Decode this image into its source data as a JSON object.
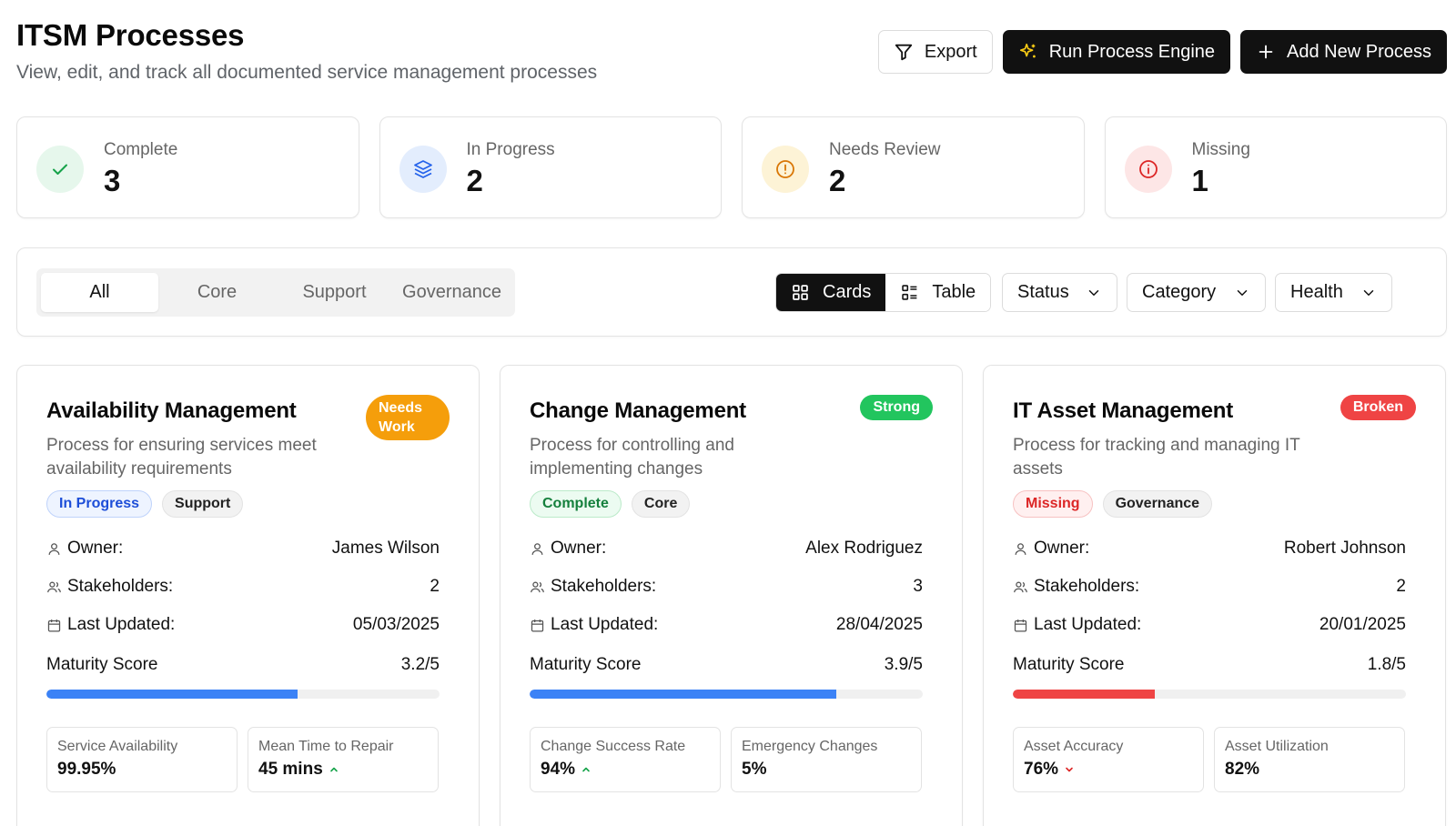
{
  "header": {
    "title": "ITSM Processes",
    "subtitle": "View, edit, and track all documented service management processes",
    "export_label": "Export",
    "run_engine_label": "Run Process Engine",
    "add_process_label": "Add New Process"
  },
  "stats": [
    {
      "label": "Complete",
      "value": "3",
      "icon": "check-icon",
      "color": "#16a34a",
      "bg": "#e6f7ec"
    },
    {
      "label": "In Progress",
      "value": "2",
      "icon": "layers-icon",
      "color": "#2563eb",
      "bg": "#e3edfd"
    },
    {
      "label": "Needs Review",
      "value": "2",
      "icon": "alert-circle-icon",
      "color": "#d97706",
      "bg": "#fdf3d6"
    },
    {
      "label": "Missing",
      "value": "1",
      "icon": "info-circle-icon",
      "color": "#dc2626",
      "bg": "#fde6e6"
    }
  ],
  "filters": {
    "tabs": [
      "All",
      "Core",
      "Support",
      "Governance"
    ],
    "active_tab": "All",
    "view_cards_label": "Cards",
    "view_table_label": "Table",
    "status_label": "Status",
    "category_label": "Category",
    "health_label": "Health"
  },
  "processes": [
    {
      "title": "Availability Management",
      "description": "Process for ensuring services meet availability requirements",
      "health": "Needs Work",
      "health_color": "#f59e0b",
      "status": "In Progress",
      "category": "Support",
      "owner_label": "Owner:",
      "owner": "James Wilson",
      "stakeholders_label": "Stakeholders:",
      "stakeholders": "2",
      "updated_label": "Last Updated:",
      "updated": "05/03/2025",
      "maturity_label": "Maturity Score",
      "maturity": "3.2/5",
      "maturity_fraction": 0.64,
      "bar_color": "#3b82f6",
      "metrics": [
        {
          "label": "Service Availability",
          "value": "99.95%",
          "trend": ""
        },
        {
          "label": "Mean Time to Repair",
          "value": "45 mins",
          "trend": "up"
        }
      ]
    },
    {
      "title": "Change Management",
      "description": "Process for controlling and implementing changes",
      "health": "Strong",
      "health_color": "#22c55e",
      "status": "Complete",
      "category": "Core",
      "owner_label": "Owner:",
      "owner": "Alex Rodriguez",
      "stakeholders_label": "Stakeholders:",
      "stakeholders": "3",
      "updated_label": "Last Updated:",
      "updated": "28/04/2025",
      "maturity_label": "Maturity Score",
      "maturity": "3.9/5",
      "maturity_fraction": 0.78,
      "bar_color": "#3b82f6",
      "metrics": [
        {
          "label": "Change Success Rate",
          "value": "94%",
          "trend": "up"
        },
        {
          "label": "Emergency Changes",
          "value": "5%",
          "trend": ""
        }
      ]
    },
    {
      "title": "IT Asset Management",
      "description": "Process for tracking and managing IT assets",
      "health": "Broken",
      "health_color": "#ef4444",
      "status": "Missing",
      "category": "Governance",
      "owner_label": "Owner:",
      "owner": "Robert Johnson",
      "stakeholders_label": "Stakeholders:",
      "stakeholders": "2",
      "updated_label": "Last Updated:",
      "updated": "20/01/2025",
      "maturity_label": "Maturity Score",
      "maturity": "1.8/5",
      "maturity_fraction": 0.36,
      "bar_color": "#ef4444",
      "metrics": [
        {
          "label": "Asset Accuracy",
          "value": "76%",
          "trend": "down"
        },
        {
          "label": "Asset Utilization",
          "value": "82%",
          "trend": ""
        }
      ]
    }
  ]
}
